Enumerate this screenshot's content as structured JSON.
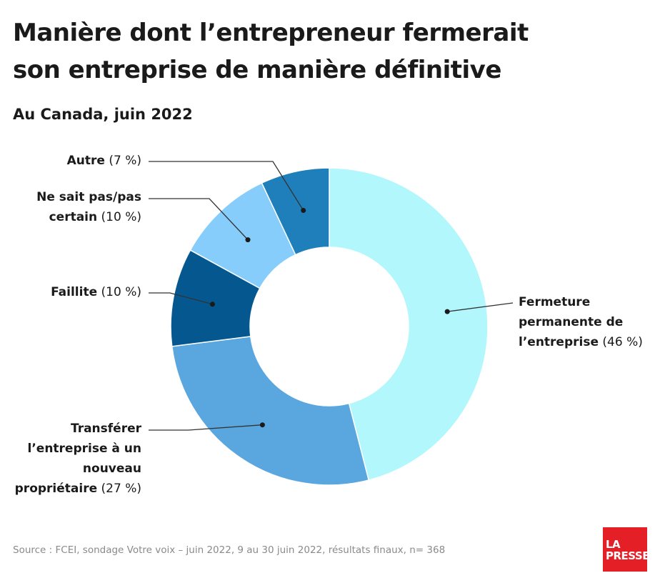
{
  "header": {
    "title_line1": "Manière dont l’entrepreneur fermerait",
    "title_line2": "son entreprise de manière définitive",
    "subtitle": "Au Canada, juin 2022"
  },
  "chart_data": {
    "type": "pie",
    "variant": "donut",
    "title": "Manière dont l’entrepreneur fermerait son entreprise de manière définitive",
    "subtitle": "Au Canada, juin 2022",
    "slices": [
      {
        "label": "Fermeture permanente de l’entreprise",
        "value": 46,
        "display": "(46 %)",
        "color": "#b2f7fc"
      },
      {
        "label": "Transférer l’entreprise à un nouveau propriétaire",
        "value": 27,
        "display": "(27 %)",
        "color": "#5aa7e0"
      },
      {
        "label": "Faillite",
        "value": 10,
        "display": "(10 %)",
        "color": "#04588f"
      },
      {
        "label": "Ne sait pas/pas certain",
        "value": 10,
        "display": "(10 %)",
        "color": "#87cdfc"
      },
      {
        "label": "Autre",
        "value": 7,
        "display": "(7 %)",
        "color": "#1f7fbb"
      }
    ],
    "start_angle_deg": 0,
    "direction": "clockwise"
  },
  "labels": {
    "fermeture": {
      "line1": "Fermeture",
      "line2": "permanente de",
      "line3": "l’entreprise",
      "pct": "(46 %)"
    },
    "transferer": {
      "line1": "Transférer",
      "line2": "l’entreprise à un",
      "line3": "nouveau",
      "line4": "propriétaire",
      "pct": "(27 %)"
    },
    "faillite": {
      "name": "Faillite",
      "pct": "(10 %)"
    },
    "nesaitpas": {
      "line1": "Ne sait pas/pas",
      "line2": "certain",
      "pct": "(10 %)"
    },
    "autre": {
      "name": "Autre",
      "pct": "(7 %)"
    }
  },
  "footer": {
    "source": "Source : FCEI, sondage Votre voix – juin 2022, 9 au 30 juin 2022, résultats finaux, n= 368",
    "logo_line1": "LA",
    "logo_line2": "PRESSE"
  }
}
